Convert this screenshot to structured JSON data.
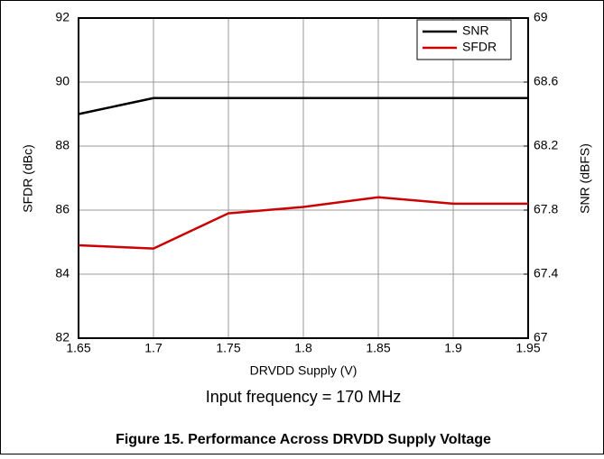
{
  "chart_data": {
    "type": "line",
    "x": [
      1.65,
      1.7,
      1.75,
      1.8,
      1.85,
      1.9,
      1.95
    ],
    "series": [
      {
        "name": "SNR",
        "color": "#000000",
        "axis": "y2",
        "values": [
          68.4,
          68.5,
          68.5,
          68.5,
          68.5,
          68.5,
          68.5
        ]
      },
      {
        "name": "SFDR",
        "color": "#cc0000",
        "values": [
          84.9,
          84.8,
          85.9,
          86.1,
          86.4,
          86.2,
          86.2
        ]
      }
    ],
    "xlim": [
      1.65,
      1.95
    ],
    "xticks": [
      1.65,
      1.7,
      1.75,
      1.8,
      1.85,
      1.9,
      1.95
    ],
    "ylim": [
      82,
      92
    ],
    "yticks": [
      82,
      84,
      86,
      88,
      90,
      92
    ],
    "y2lim": [
      67,
      69
    ],
    "y2ticks": [
      67,
      67.4,
      67.8,
      68.2,
      68.6,
      69
    ],
    "xlabel": "DRVDD Supply (V)",
    "ylabel": "SFDR (dBc)",
    "y2label": "SNR (dBFS)",
    "annotation": "Input frequency = 170 MHz",
    "caption": "Figure 15. Performance Across DRVDD Supply Voltage",
    "grid": true,
    "legend": "upper right"
  }
}
